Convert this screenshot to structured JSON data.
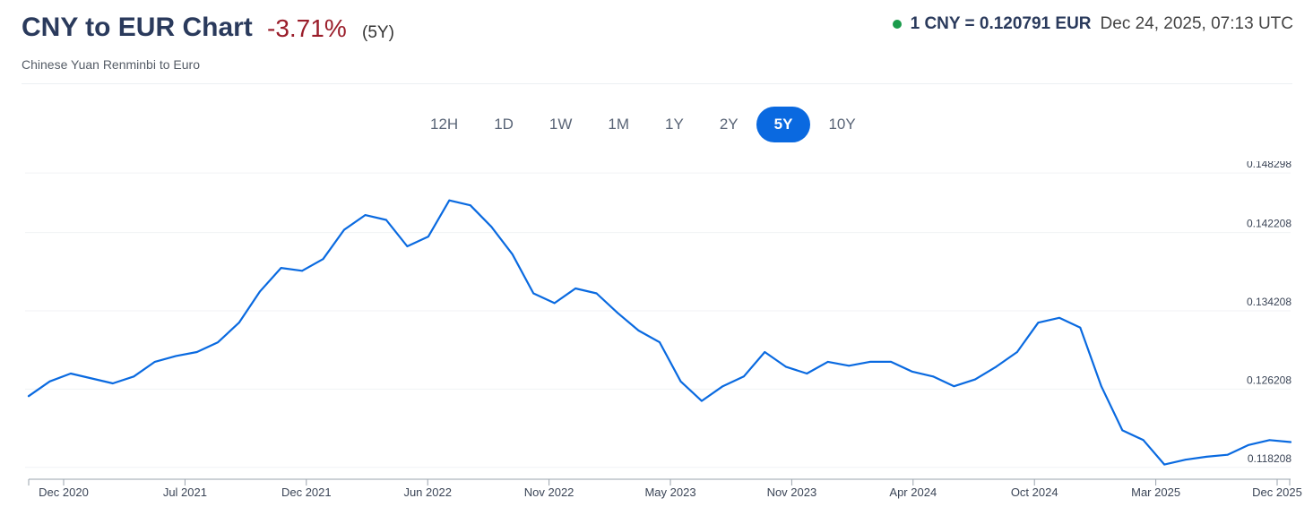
{
  "header": {
    "title": "CNY to EUR Chart",
    "change": "-3.71%",
    "period": "(5Y)",
    "subtitle": "Chinese Yuan Renminbi to Euro",
    "rate": "1 CNY = 0.120791 EUR",
    "timestamp": "Dec 24, 2025, 07:13 UTC"
  },
  "ranges": [
    "12H",
    "1D",
    "1W",
    "1M",
    "1Y",
    "2Y",
    "5Y",
    "10Y"
  ],
  "active_range": "5Y",
  "colors": {
    "line": "#0a6ae0",
    "accent": "#0a69e0",
    "negative": "#9a1d2a",
    "live_dot": "#1a9b4b"
  },
  "chart_data": {
    "type": "line",
    "title": "",
    "xlabel": "",
    "ylabel": "",
    "y_ticks": [
      "0.148298",
      "0.142208",
      "0.134208",
      "0.126208",
      "0.118208"
    ],
    "x_ticks": [
      "Dec 2020",
      "Jul 2021",
      "Dec 2021",
      "Jun 2022",
      "Nov 2022",
      "May 2023",
      "Nov 2023",
      "Apr 2024",
      "Oct 2024",
      "Mar 2025",
      "Dec 2025"
    ],
    "ylim": [
      0.117,
      0.1495
    ],
    "grid": true,
    "series": [
      {
        "x": [
          "2020-12",
          "2021-01",
          "2021-02",
          "2021-03",
          "2021-04",
          "2021-05",
          "2021-06",
          "2021-07",
          "2021-08",
          "2021-09",
          "2021-10",
          "2021-11",
          "2021-12",
          "2022-01",
          "2022-02",
          "2022-03",
          "2022-04",
          "2022-05",
          "2022-06",
          "2022-07",
          "2022-08",
          "2022-09",
          "2022-10",
          "2022-11",
          "2022-12",
          "2023-01",
          "2023-02",
          "2023-03",
          "2023-04",
          "2023-05",
          "2023-06",
          "2023-07",
          "2023-08",
          "2023-09",
          "2023-10",
          "2023-11",
          "2023-12",
          "2024-01",
          "2024-02",
          "2024-03",
          "2024-04",
          "2024-05",
          "2024-06",
          "2024-07",
          "2024-08",
          "2024-09",
          "2024-10",
          "2024-11",
          "2024-12",
          "2025-01",
          "2025-02",
          "2025-03",
          "2025-04",
          "2025-05",
          "2025-06",
          "2025-07",
          "2025-08",
          "2025-09",
          "2025-10",
          "2025-11",
          "2025-12"
        ],
        "values": [
          0.1255,
          0.127,
          0.1278,
          0.1273,
          0.1268,
          0.1275,
          0.129,
          0.1296,
          0.13,
          0.131,
          0.133,
          0.1362,
          0.1386,
          0.1383,
          0.1395,
          0.1425,
          0.144,
          0.1435,
          0.1408,
          0.1418,
          0.1455,
          0.145,
          0.1428,
          0.14,
          0.136,
          0.135,
          0.1365,
          0.136,
          0.134,
          0.1322,
          0.131,
          0.127,
          0.125,
          0.1265,
          0.1275,
          0.13,
          0.1285,
          0.1278,
          0.129,
          0.1286,
          0.129,
          0.129,
          0.128,
          0.1275,
          0.1265,
          0.1272,
          0.1285,
          0.13,
          0.133,
          0.1335,
          0.1325,
          0.1265,
          0.122,
          0.121,
          0.1185,
          0.119,
          0.1193,
          0.1195,
          0.1205,
          0.121,
          0.1208
        ]
      }
    ]
  }
}
